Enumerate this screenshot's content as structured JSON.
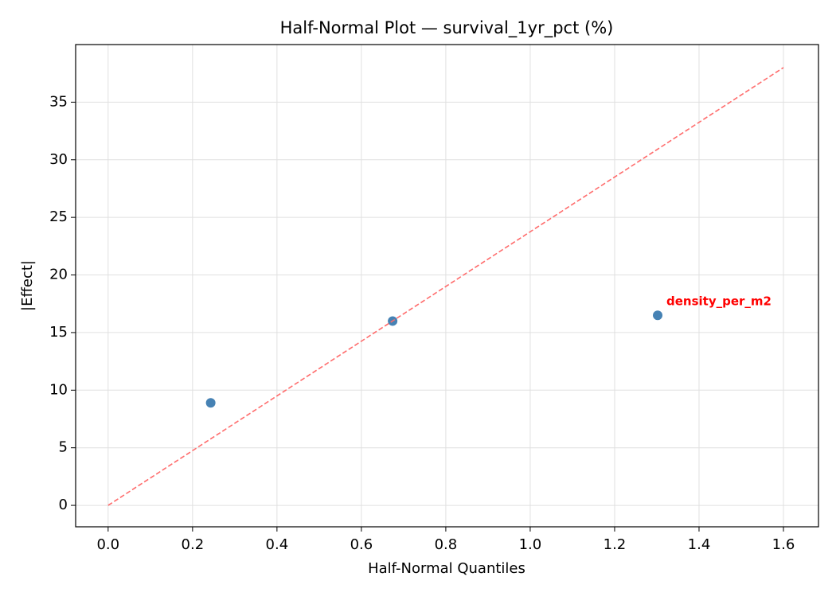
{
  "chart_data": {
    "type": "scatter",
    "title": "Half-Normal Plot — survival_1yr_pct (%)",
    "x_label": "Half-Normal Quantiles",
    "y_label": "|Effect|",
    "xlim": [
      -0.077,
      1.683
    ],
    "ylim": [
      -1.86,
      40
    ],
    "xticks": [
      {
        "value": 0,
        "label": "0.0"
      },
      0.2,
      0.4,
      0.6,
      0.8,
      {
        "value": 1,
        "label": "1.0"
      },
      1.2,
      1.4,
      1.6
    ],
    "yticks": [
      0,
      5,
      10,
      15,
      20,
      25,
      30,
      35
    ],
    "grid": true,
    "series": [
      {
        "type": "scatter",
        "color": "#4682b4",
        "x": [
          0.243,
          0.674,
          1.302
        ],
        "values": [
          8.9,
          16.0,
          16.5
        ],
        "point_labels": [
          null,
          null,
          "density_per_m2"
        ],
        "point_label_color": "#ff0000"
      },
      {
        "type": "line",
        "color": "#ff6b6b",
        "dashed": true,
        "x": [
          0,
          1.6
        ],
        "values": [
          0,
          38.0
        ]
      }
    ]
  }
}
